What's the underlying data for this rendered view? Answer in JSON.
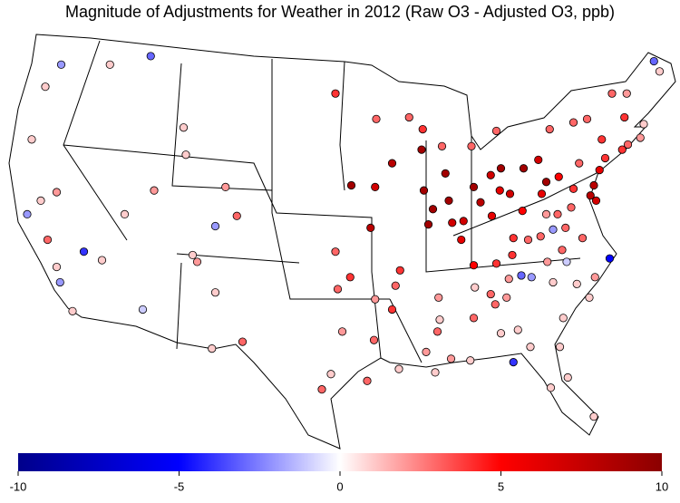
{
  "chart_data": {
    "type": "map",
    "title": "Magnitude of Adjustments for Weather in 2012 (Raw O3 - Adjusted O3, ppb)",
    "colorbar": {
      "lim": [
        -10,
        10
      ],
      "ticks": [
        -10,
        -5,
        0,
        5,
        10
      ],
      "colors": [
        "#00008b",
        "#0000ff",
        "#ffffff",
        "#ff0000",
        "#8b0000"
      ]
    },
    "lon": [
      -120.0,
      -121.4,
      -115.7,
      -112.1,
      -122.6,
      -121.8,
      -120.4,
      -123.0,
      -121.2,
      -118.0,
      -120.4,
      -120.1,
      -119.0,
      -116.4,
      -114.4,
      -111.8,
      -112.8,
      -108.4,
      -108.0,
      -106.4,
      -104.5,
      -105.5,
      -109.0,
      -109.2,
      -106.4,
      -106.7,
      -104.0,
      -96.2,
      -97.0,
      -95.2,
      -93.0,
      -92.4,
      -95.8,
      -95.6,
      -94.5,
      -92.7,
      -95.8,
      -94.4,
      -92.3,
      -90.8,
      -92.2,
      -89.3,
      -88.1,
      -86.4,
      -86.1,
      -88.2,
      -88.0,
      -87.2,
      -85.8,
      -87.6,
      -85.5,
      -90.1,
      -90.5,
      -90.8,
      -92.3,
      -83.8,
      -83.6,
      -81.6,
      -81.2,
      -82.1,
      -83.0,
      -82.0,
      -84.5,
      -84.7,
      -81.3,
      -80.4,
      -79.2,
      -77.9,
      -77.2,
      -76.1,
      -77.6,
      -76.9,
      -74.8,
      -73.6,
      -72.3,
      -72.0,
      -72.5,
      -73.0,
      -73.3,
      -72.8,
      -74.3,
      -74.8,
      -70.3,
      -68.6,
      -68.9,
      -70.0,
      -70.5,
      -71.4,
      -70.1,
      -67.7,
      -67.2,
      -83.6,
      -81.6,
      -80.2,
      -79.4,
      -78.5,
      -77.1,
      -75.8,
      -75.4,
      -76.6,
      -74.5,
      -71.6,
      -72.9,
      -73.4,
      -82.1,
      -83.5,
      -81.7,
      -80.5,
      -80.7,
      -79.7,
      -81.2,
      -83.6,
      -86.7,
      -86.6,
      -86.8,
      -87.8,
      -85.6,
      -83.9,
      -80.1,
      -78.6,
      -76.8,
      -75.3,
      -76.0,
      -75.7,
      -73.0,
      -76.2,
      -77.2,
      -75.5,
      -77.7,
      -78.8,
      -80.1,
      -79.3,
      -75.0,
      -74.0,
      -76.6,
      -87.0,
      -90.2
    ],
    "lat": [
      47.2,
      45.9,
      47.2,
      47.7,
      42.8,
      39.2,
      39.7,
      38.4,
      36.9,
      36.2,
      35.3,
      34.4,
      32.7,
      35.7,
      38.4,
      39.8,
      32.8,
      36.0,
      35.6,
      37.7,
      38.3,
      40.0,
      41.9,
      43.5,
      33.8,
      30.5,
      30.9,
      29.0,
      28.1,
      31.5,
      28.6,
      31.0,
      36.2,
      34.0,
      34.7,
      37.6,
      45.5,
      40.1,
      40.0,
      41.4,
      44.0,
      44.1,
      43.4,
      42.4,
      40.8,
      42.2,
      39.8,
      38.7,
      39.2,
      37.8,
      37.9,
      35.1,
      34.2,
      32.8,
      33.4,
      42.4,
      40.0,
      43.3,
      41.1,
      40.7,
      39.1,
      38.3,
      38.0,
      36.9,
      39.8,
      39.6,
      41.1,
      41.6,
      40.3,
      40.6,
      39.6,
      43.4,
      43.8,
      44.0,
      42.8,
      41.7,
      41.0,
      40.1,
      39.5,
      39.2,
      41.4,
      39.9,
      44.1,
      43.7,
      42.9,
      42.5,
      42.2,
      45.5,
      45.5,
      47.4,
      46.8,
      35.4,
      35.5,
      36.0,
      34.8,
      34.7,
      35.6,
      36.3,
      35.6,
      34.4,
      34.3,
      35.8,
      34.7,
      33.5,
      33.7,
      34.1,
      33.1,
      34.6,
      33.5,
      31.6,
      31.4,
      32.3,
      33.5,
      32.2,
      31.5,
      30.3,
      29.9,
      29.8,
      29.7,
      30.6,
      28.2,
      28.8,
      30.6,
      32.3,
      26.5,
      38.4,
      38.4,
      37.6,
      37.1,
      36.9,
      37.0,
      38.6,
      38.8,
      37.0,
      37.5,
      29.1,
      29.3
    ],
    "values": [
      -2,
      1,
      1,
      -3,
      1,
      1,
      2,
      -2,
      3,
      -4,
      1,
      -2,
      1,
      1,
      1,
      2,
      -1,
      1,
      2,
      -2,
      3,
      2,
      1,
      1,
      1,
      1,
      3,
      1,
      3,
      2,
      3,
      3,
      3,
      3,
      4,
      8,
      4,
      9,
      7,
      8,
      3,
      3,
      4,
      3,
      9,
      9,
      9,
      9,
      9,
      9,
      7,
      4,
      3,
      4,
      2,
      3,
      9,
      3,
      9,
      7,
      8,
      6,
      7,
      6,
      6,
      7,
      9,
      7,
      9,
      5,
      6,
      3,
      3,
      3,
      4,
      4,
      6,
      8,
      8,
      7,
      3,
      4,
      4,
      1,
      2,
      3,
      4,
      3,
      2,
      -3,
      1,
      5,
      4,
      4,
      -3,
      -2,
      2,
      3,
      -1,
      1,
      1,
      -5,
      2,
      1,
      3,
      1,
      3,
      2,
      2,
      1,
      1,
      3,
      2,
      1,
      3,
      2,
      2,
      1,
      -4,
      1,
      1,
      1,
      1,
      1,
      1,
      3,
      2,
      3,
      3,
      3,
      4,
      5,
      3,
      3,
      -2,
      1,
      1
    ]
  }
}
